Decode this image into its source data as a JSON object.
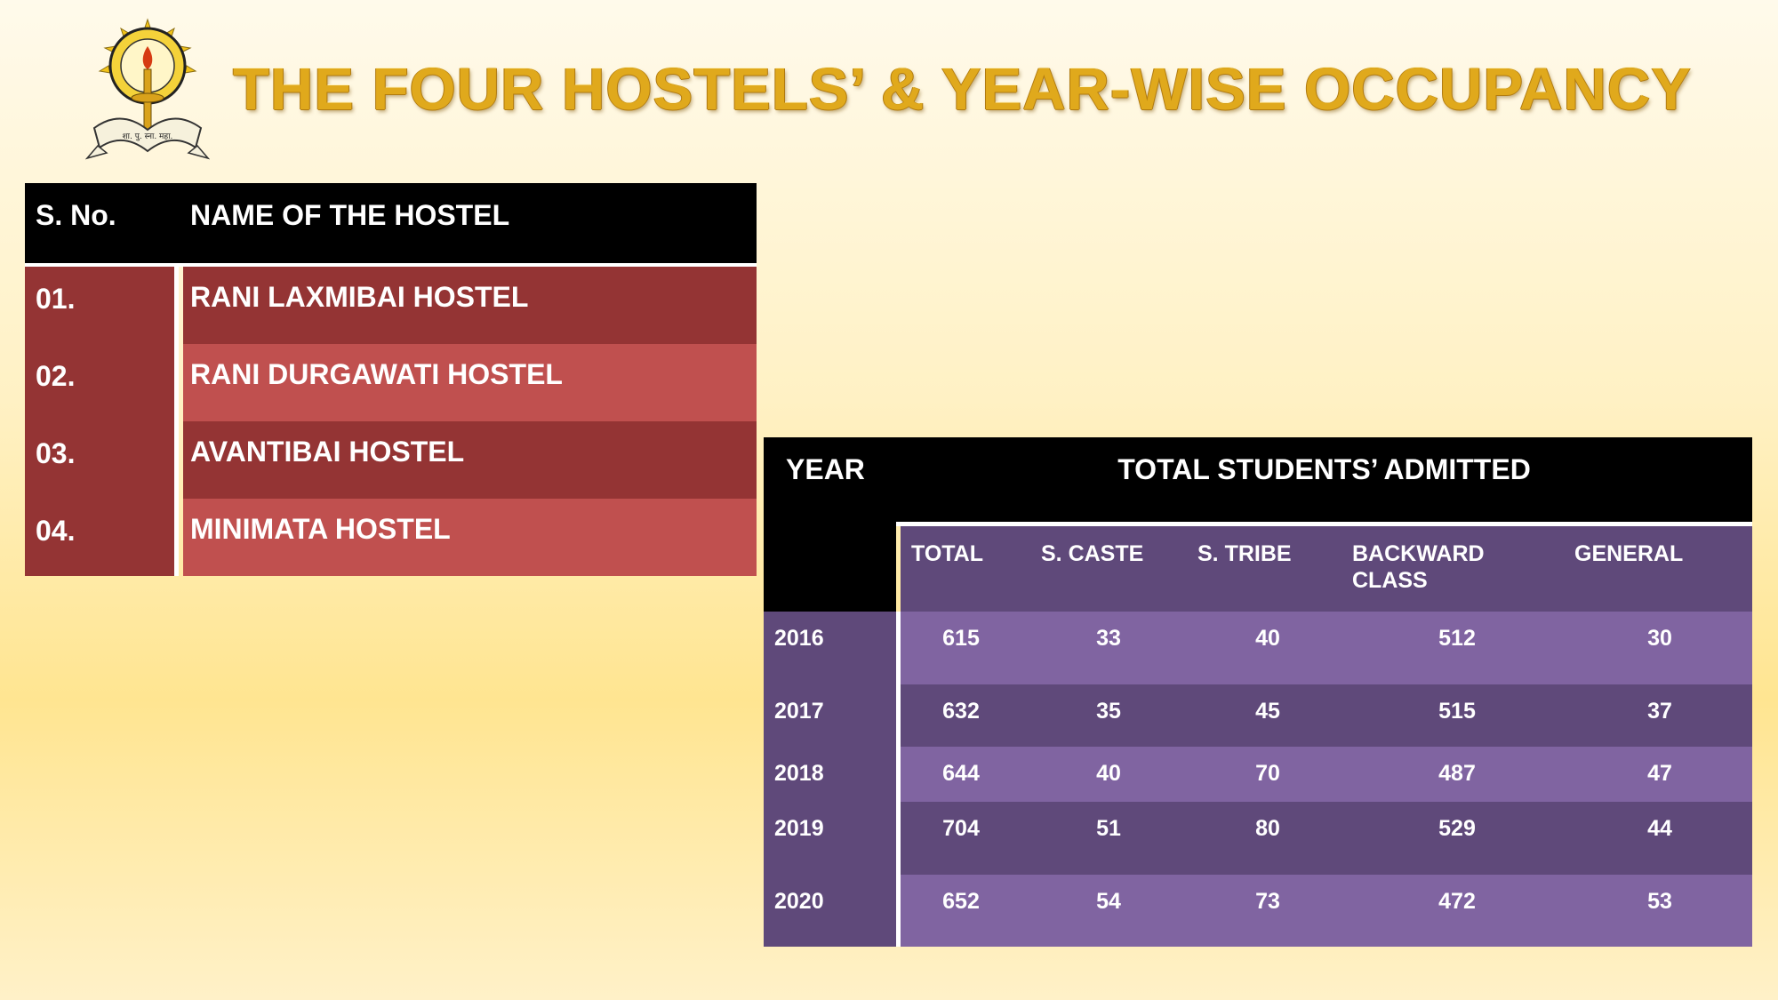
{
  "title": "THE FOUR HOSTELS’ & YEAR-WISE OCCUPANCY",
  "logo": {
    "name": "college-emblem-logo",
    "ribbon_text": "शा. पु. स्ना. महा. राजनांदगांव"
  },
  "hostels_table": {
    "headers": {
      "sno": "S. No.",
      "name": "NAME OF THE HOSTEL"
    },
    "rows": [
      {
        "sno": "01.",
        "name": "RANI LAXMIBAI HOSTEL"
      },
      {
        "sno": "02.",
        "name": "RANI DURGAWATI HOSTEL"
      },
      {
        "sno": "03.",
        "name": "AVANTIBAI HOSTEL"
      },
      {
        "sno": "04.",
        "name": "MINIMATA HOSTEL"
      }
    ]
  },
  "occupancy_table": {
    "year_header": "YEAR",
    "group_header": "TOTAL STUDENTS’ ADMITTED",
    "columns": [
      "TOTAL",
      "S. CASTE",
      "S. TRIBE",
      "BACKWARD CLASS",
      "GENERAL"
    ],
    "rows": [
      {
        "year": "2016",
        "total": "615",
        "s_caste": "33",
        "s_tribe": "40",
        "backward": "512",
        "general": "30"
      },
      {
        "year": "2017",
        "total": "632",
        "s_caste": "35",
        "s_tribe": "45",
        "backward": "515",
        "general": "37"
      },
      {
        "year": "2018",
        "total": "644",
        "s_caste": "40",
        "s_tribe": "70",
        "backward": "487",
        "general": "47"
      },
      {
        "year": "2019",
        "total": "704",
        "s_caste": "51",
        "s_tribe": "80",
        "backward": "529",
        "general": "44"
      },
      {
        "year": "2020",
        "total": "652",
        "s_caste": "54",
        "s_tribe": "73",
        "backward": "472",
        "general": "53"
      }
    ]
  },
  "colors": {
    "title_gold": "#e0a91c",
    "hostel_dark": "#943434",
    "hostel_light": "#c0504f",
    "occ_dark": "#5f497a",
    "occ_light": "#8064a1",
    "header_black": "#000000"
  }
}
